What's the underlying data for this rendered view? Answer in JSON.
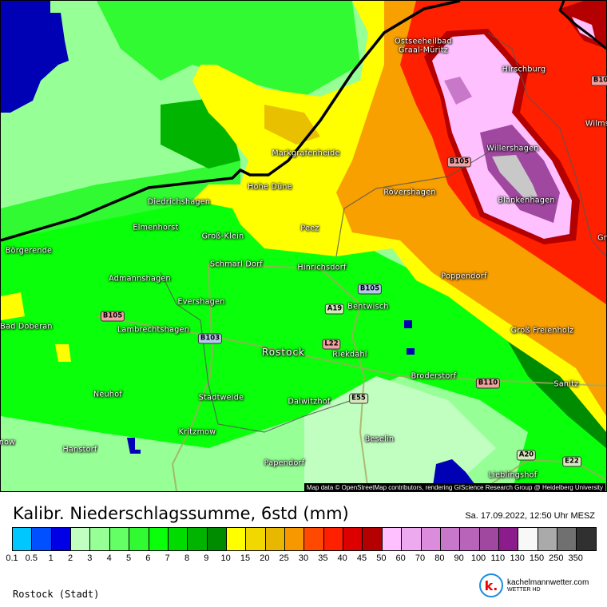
{
  "map": {
    "places": [
      "Ostseeheilbad",
      "Graal-Müritz",
      "Hirschburg",
      "Wilms",
      "Markgrafenheide",
      "Willershagen",
      "Hohe Düne",
      "Rövershagen",
      "Blankenhagen",
      "Diedrichshagen",
      "Elmenhorst",
      "Peez",
      "Groß-Klein",
      "Gr",
      "Börgerende",
      "Schmarl Dorf",
      "Hinrichsdorf",
      "Admannshagen",
      "Poppendorf",
      "Evershagen",
      "Bentwisch",
      "Bad Doberan",
      "Lambrechtshagen",
      "Groß Freienholz",
      "Rostock",
      "Riekdahl",
      "Neuhof",
      "Broderstorf",
      "Sanitz",
      "Stadtweide",
      "Dalwitzhof",
      "Kritzmow",
      "Beselin",
      "now",
      "Hanstorf",
      "Papendorf",
      "Lieblingshof"
    ],
    "roads": [
      "B10",
      "B105",
      "B105",
      "B105",
      "A19",
      "B103",
      "L22",
      "B110",
      "E55",
      "A20",
      "E22"
    ],
    "attribution": "Map data © OpenStreetMap contributors, rendering GIScience Research Group @ Heidelberg University"
  },
  "legend": {
    "title": "Kalibr. Niederschlagssumme, 6std (mm)",
    "datetime": "Sa. 17.09.2022, 12:50 Uhr MESZ",
    "labels": [
      "0.1",
      "0.5",
      "1",
      "2",
      "3",
      "4",
      "5",
      "6",
      "7",
      "8",
      "9",
      "10",
      "15",
      "20",
      "25",
      "30",
      "35",
      "40",
      "45",
      "50",
      "60",
      "70",
      "80",
      "90",
      "100",
      "110",
      "130",
      "150",
      "250",
      "350"
    ],
    "colors": [
      "#00c8ff",
      "#0050ff",
      "#0000e6",
      "#c0ffc0",
      "#96ff96",
      "#64ff64",
      "#32fa32",
      "#0aff0a",
      "#00dc00",
      "#00b400",
      "#008c00",
      "#ffff00",
      "#f0d800",
      "#e8b800",
      "#f89800",
      "#ff4800",
      "#ff2000",
      "#dc0000",
      "#b40000",
      "#ffc0ff",
      "#eeaaee",
      "#dc8cdc",
      "#c878c8",
      "#b864b8",
      "#a048a0",
      "#8c1c8c",
      "#f8f8f8",
      "#aaaaaa",
      "#707070",
      "#303030"
    ]
  },
  "region": "Rostock (Stadt)",
  "logo": {
    "letter": "k.",
    "name": "kachelmannwetter.com",
    "sub": "WETTER HD"
  }
}
